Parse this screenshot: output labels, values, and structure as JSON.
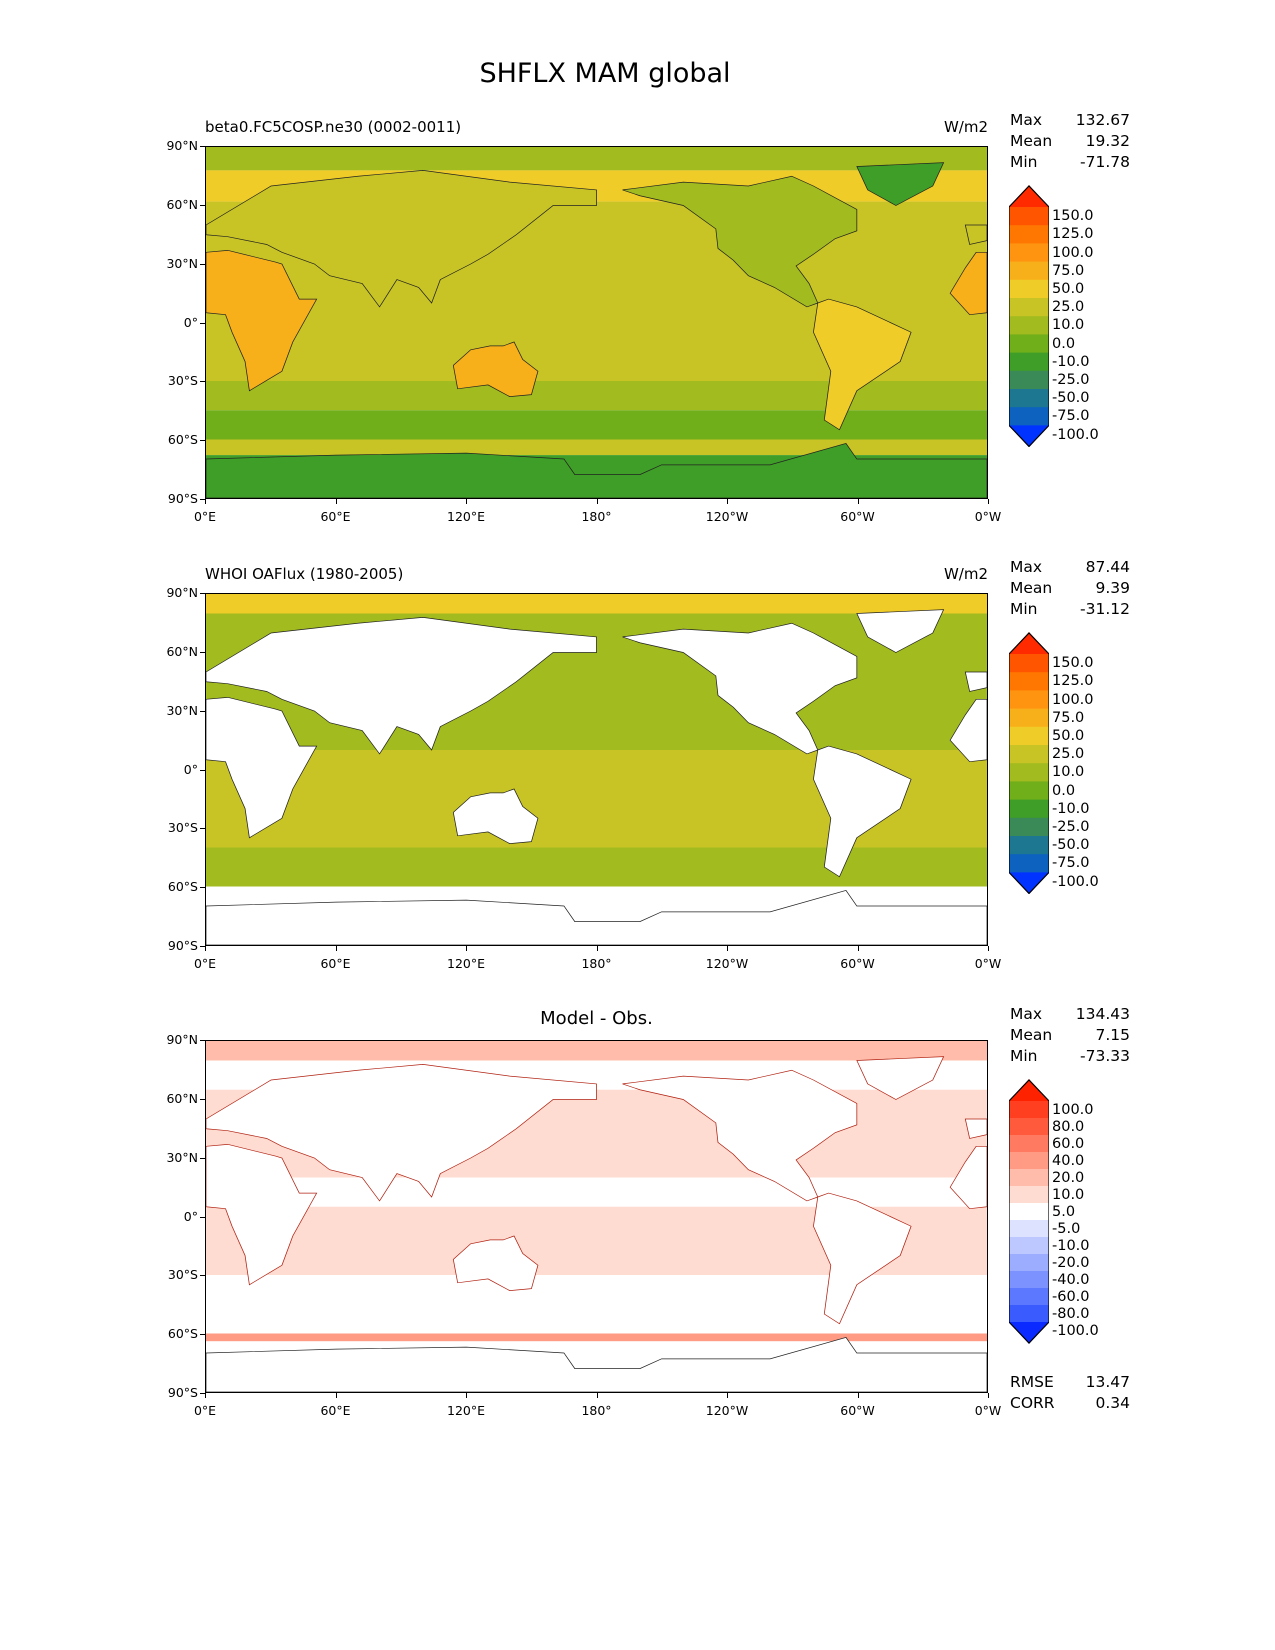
{
  "figure_title": "SHFLX MAM global",
  "lat_ticks": [
    "90°N",
    "60°N",
    "30°N",
    "0°",
    "30°S",
    "60°S",
    "90°S"
  ],
  "lon_ticks": [
    "0°E",
    "60°E",
    "120°E",
    "180°",
    "120°W",
    "60°W",
    "0°W"
  ],
  "panels": [
    {
      "left_title": "beta0.FC5COSP.ne30 (0002-0011)",
      "center_title": "",
      "units": "W/m2",
      "stats": [
        {
          "label": "Max",
          "value": "132.67"
        },
        {
          "label": "Mean",
          "value": "19.32"
        },
        {
          "label": "Min",
          "value": "-71.78"
        }
      ],
      "colorbar": {
        "levels": [
          "150.0",
          "125.0",
          "100.0",
          "75.0",
          "50.0",
          "25.0",
          "10.0",
          "0.0",
          "-10.0",
          "-25.0",
          "-50.0",
          "-75.0",
          "-100.0"
        ],
        "colors": [
          "#ff2a00",
          "#ff5500",
          "#ff7700",
          "#ff9410",
          "#f8b01a",
          "#f0cc28",
          "#c8c426",
          "#a2bb1f",
          "#70ae1a",
          "#3f9e27",
          "#3a8a58",
          "#1e7790",
          "#0d62c0",
          "#0033ff"
        ]
      },
      "extra_stats": []
    },
    {
      "left_title": "WHOI OAFlux (1980-2005)",
      "center_title": "",
      "units": "W/m2",
      "stats": [
        {
          "label": "Max",
          "value": "87.44"
        },
        {
          "label": "Mean",
          "value": "9.39"
        },
        {
          "label": "Min",
          "value": "-31.12"
        }
      ],
      "colorbar": {
        "levels": [
          "150.0",
          "125.0",
          "100.0",
          "75.0",
          "50.0",
          "25.0",
          "10.0",
          "0.0",
          "-10.0",
          "-25.0",
          "-50.0",
          "-75.0",
          "-100.0"
        ],
        "colors": [
          "#ff2a00",
          "#ff5500",
          "#ff7700",
          "#ff9410",
          "#f8b01a",
          "#f0cc28",
          "#c8c426",
          "#a2bb1f",
          "#70ae1a",
          "#3f9e27",
          "#3a8a58",
          "#1e7790",
          "#0d62c0",
          "#0033ff"
        ]
      },
      "extra_stats": []
    },
    {
      "left_title": "",
      "center_title": "Model - Obs.",
      "units": "",
      "stats": [
        {
          "label": "Max",
          "value": "134.43"
        },
        {
          "label": "Mean",
          "value": "7.15"
        },
        {
          "label": "Min",
          "value": "-73.33"
        }
      ],
      "colorbar": {
        "levels": [
          "100.0",
          "80.0",
          "60.0",
          "40.0",
          "20.0",
          "10.0",
          "5.0",
          "-5.0",
          "-10.0",
          "-20.0",
          "-40.0",
          "-60.0",
          "-80.0",
          "-100.0"
        ],
        "colors": [
          "#ff2200",
          "#ff3f1f",
          "#ff5a3c",
          "#ff7a60",
          "#ff9a84",
          "#ffbcaa",
          "#ffdcd2",
          "#ffffff",
          "#dde2ff",
          "#bcc8ff",
          "#9cadff",
          "#7c92ff",
          "#5b78ff",
          "#3a5cff",
          "#0a2aff"
        ]
      },
      "extra_stats": [
        {
          "label": "RMSE",
          "value": "13.47"
        },
        {
          "label": "CORR",
          "value": "0.34"
        }
      ]
    }
  ]
}
